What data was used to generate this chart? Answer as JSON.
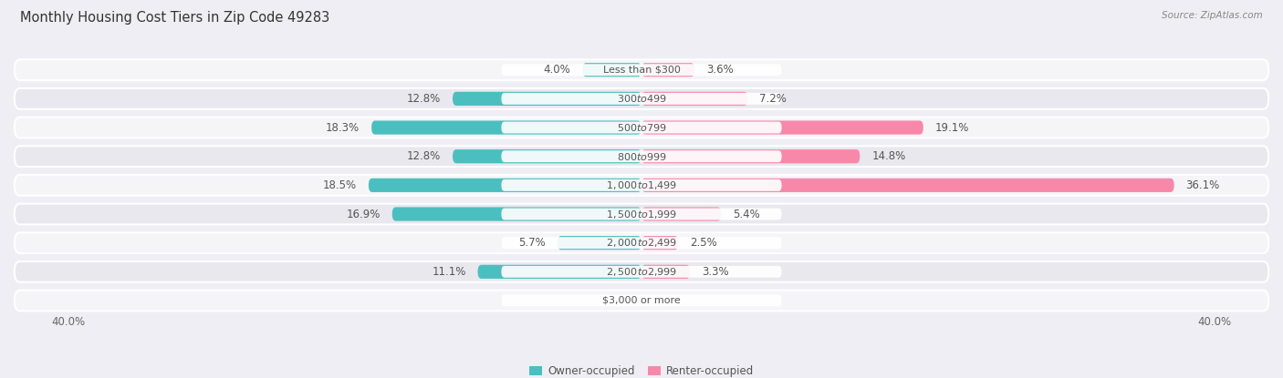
{
  "title": "Monthly Housing Cost Tiers in Zip Code 49283",
  "source": "Source: ZipAtlas.com",
  "categories": [
    "Less than $300",
    "$300 to $499",
    "$500 to $799",
    "$800 to $999",
    "$1,000 to $1,499",
    "$1,500 to $1,999",
    "$2,000 to $2,499",
    "$2,500 to $2,999",
    "$3,000 or more"
  ],
  "owner_values": [
    4.0,
    12.8,
    18.3,
    12.8,
    18.5,
    16.9,
    5.7,
    11.1,
    0.0
  ],
  "renter_values": [
    3.6,
    7.2,
    19.1,
    14.8,
    36.1,
    5.4,
    2.5,
    3.3,
    0.0
  ],
  "owner_color": "#4bbfbf",
  "renter_color": "#f888aa",
  "background_color": "#eeeef4",
  "row_even_color": "#f5f5f8",
  "row_odd_color": "#e8e8ee",
  "axis_limit": 40.0,
  "title_fontsize": 10.5,
  "label_fontsize": 8.5,
  "tick_fontsize": 8.5,
  "category_fontsize": 8.0,
  "source_fontsize": 7.5
}
